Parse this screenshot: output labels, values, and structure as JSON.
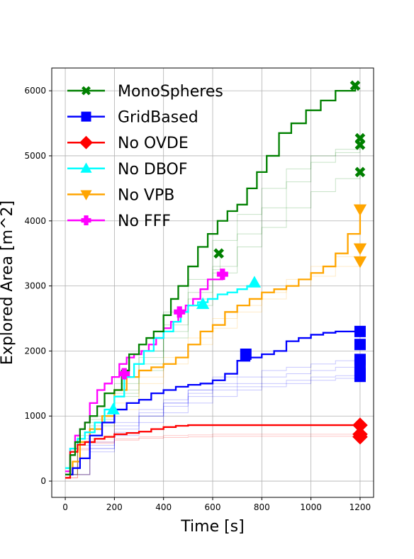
{
  "chart_data": {
    "type": "line",
    "title": "",
    "xlabel": "Time [s]",
    "ylabel": "Explored Area [m^2]",
    "xlim": [
      -55,
      1255
    ],
    "ylim": [
      -250,
      6350
    ],
    "xticks": [
      0,
      200,
      400,
      600,
      800,
      1000,
      1200
    ],
    "yticks": [
      0,
      1000,
      2000,
      3000,
      4000,
      5000,
      6000
    ],
    "xtick_labels": [
      "0",
      "200",
      "400",
      "600",
      "800",
      "1000",
      "1200"
    ],
    "ytick_labels": [
      "0",
      "1000",
      "2000",
      "3000",
      "4000",
      "5000",
      "6000"
    ],
    "grid": true,
    "legend_position": "top-left",
    "series": [
      {
        "name": "MonoSpheres",
        "color": "#008000",
        "marker": "x-filled",
        "main": {
          "x": [
            0,
            20,
            40,
            60,
            80,
            100,
            130,
            160,
            200,
            230,
            260,
            300,
            330,
            360,
            400,
            430,
            460,
            500,
            540,
            580,
            620,
            660,
            700,
            740,
            780,
            820,
            870,
            920,
            980,
            1040,
            1100,
            1180
          ],
          "y": [
            100,
            400,
            600,
            800,
            900,
            1000,
            1150,
            1350,
            1400,
            1700,
            1950,
            2100,
            2200,
            2300,
            2550,
            2800,
            3000,
            3300,
            3600,
            3800,
            4000,
            4150,
            4250,
            4500,
            4750,
            5000,
            5350,
            5500,
            5700,
            5850,
            6000,
            6080
          ]
        },
        "faint": [
          {
            "x": [
              0,
              50,
              100,
              200,
              300,
              400,
              500,
              600,
              700,
              800,
              900,
              1000,
              1100,
              1200
            ],
            "y": [
              100,
              700,
              1000,
              1500,
              2000,
              2600,
              3100,
              3700,
              4100,
              4500,
              4800,
              5000,
              5100,
              5250
            ]
          },
          {
            "x": [
              0,
              50,
              100,
              200,
              300,
              400,
              500,
              600,
              700,
              800,
              900,
              1000,
              1100,
              1200
            ],
            "y": [
              100,
              650,
              950,
              1400,
              1900,
              2400,
              2900,
              3300,
              3800,
              4200,
              4600,
              4900,
              5050,
              5150
            ]
          },
          {
            "x": [
              0,
              50,
              100,
              200,
              300,
              400,
              500,
              600,
              700,
              800,
              900,
              1000,
              1100,
              1200
            ],
            "y": [
              100,
              600,
              900,
              1350,
              1800,
              2300,
              2800,
              3200,
              3600,
              3900,
              4200,
              4450,
              4650,
              4750
            ]
          },
          {
            "x": [
              0,
              50,
              100,
              200,
              300,
              400,
              500,
              600,
              630
            ],
            "y": [
              100,
              550,
              850,
              1300,
              1700,
              2200,
              2700,
              3250,
              3500
            ]
          }
        ],
        "endpoints": [
          {
            "x": 1180,
            "y": 6080
          },
          {
            "x": 1200,
            "y": 5270
          },
          {
            "x": 1200,
            "y": 5170
          },
          {
            "x": 1200,
            "y": 4750
          },
          {
            "x": 625,
            "y": 3500
          }
        ]
      },
      {
        "name": "GridBased",
        "color": "#0000ff",
        "marker": "square",
        "main": {
          "x": [
            0,
            30,
            60,
            100,
            150,
            200,
            250,
            300,
            350,
            400,
            450,
            500,
            550,
            600,
            650,
            700,
            750,
            800,
            850,
            900,
            950,
            1000,
            1050,
            1100,
            1150,
            1200
          ],
          "y": [
            100,
            200,
            350,
            700,
            900,
            1100,
            1200,
            1250,
            1350,
            1400,
            1450,
            1480,
            1500,
            1550,
            1650,
            1850,
            1900,
            1950,
            2000,
            2150,
            2200,
            2250,
            2280,
            2300,
            2300,
            2300
          ]
        },
        "faint": [
          {
            "x": [
              0,
              100,
              200,
              300,
              400,
              500,
              600,
              700,
              800,
              900,
              1000,
              1100,
              1200
            ],
            "y": [
              100,
              600,
              900,
              1100,
              1250,
              1400,
              1500,
              1600,
              1700,
              1750,
              1800,
              1850,
              1900
            ]
          },
          {
            "x": [
              0,
              100,
              200,
              300,
              400,
              500,
              600,
              700,
              800,
              900,
              1000,
              1100,
              1200
            ],
            "y": [
              100,
              550,
              850,
              1050,
              1200,
              1350,
              1450,
              1500,
              1600,
              1650,
              1700,
              1750,
              1800
            ]
          },
          {
            "x": [
              0,
              100,
              200,
              300,
              400,
              500,
              600,
              700,
              800,
              900,
              1000,
              1100,
              1200
            ],
            "y": [
              100,
              500,
              800,
              1000,
              1150,
              1300,
              1400,
              1450,
              1500,
              1550,
              1600,
              1620,
              1650
            ]
          },
          {
            "x": [
              0,
              100,
              200,
              300,
              400,
              500,
              600,
              700,
              800,
              900,
              1000,
              1100,
              1200
            ],
            "y": [
              100,
              450,
              700,
              900,
              1050,
              1200,
              1300,
              1400,
              1450,
              1500,
              1550,
              1580,
              1600
            ]
          },
          {
            "x": [
              0,
              100,
              200,
              300,
              400,
              500,
              600,
              700,
              735
            ],
            "y": [
              100,
              500,
              750,
              1000,
              1200,
              1400,
              1600,
              1850,
              1950
            ]
          }
        ],
        "endpoints": [
          {
            "x": 1200,
            "y": 2300
          },
          {
            "x": 1200,
            "y": 2100
          },
          {
            "x": 1200,
            "y": 1870
          },
          {
            "x": 1200,
            "y": 1780
          },
          {
            "x": 1200,
            "y": 1650
          },
          {
            "x": 1200,
            "y": 1610
          },
          {
            "x": 735,
            "y": 1950
          }
        ]
      },
      {
        "name": "No OVDE",
        "color": "#ff0000",
        "marker": "diamond",
        "main": {
          "x": [
            0,
            20,
            50,
            80,
            120,
            160,
            200,
            250,
            300,
            350,
            400,
            450,
            500,
            600,
            700,
            800,
            900,
            1000,
            1100,
            1200
          ],
          "y": [
            50,
            450,
            560,
            600,
            650,
            680,
            720,
            740,
            760,
            800,
            830,
            850,
            860,
            860,
            860,
            860,
            860,
            860,
            860,
            860
          ]
        },
        "faint": [
          {
            "x": [
              0,
              50,
              100,
              200,
              300,
              400,
              500,
              600,
              700,
              800,
              900,
              1000,
              1100,
              1200
            ],
            "y": [
              50,
              500,
              600,
              650,
              680,
              700,
              710,
              720,
              720,
              720,
              720,
              720,
              720,
              720
            ]
          },
          {
            "x": [
              0,
              50,
              100,
              200,
              300,
              400,
              500,
              600,
              700,
              800,
              900,
              1000,
              1100,
              1200
            ],
            "y": [
              50,
              480,
              580,
              630,
              660,
              670,
              680,
              690,
              690,
              690,
              690,
              690,
              690,
              690
            ]
          }
        ],
        "endpoints": [
          {
            "x": 1200,
            "y": 860
          },
          {
            "x": 1200,
            "y": 720
          },
          {
            "x": 1200,
            "y": 680
          }
        ]
      },
      {
        "name": "No DBOF",
        "color": "#00ffff",
        "marker": "triangle-up",
        "main": {
          "x": [
            0,
            20,
            50,
            80,
            120,
            160,
            200,
            240,
            280,
            320,
            360,
            400,
            440,
            470,
            500,
            540,
            580,
            620,
            660,
            700,
            740,
            770
          ],
          "y": [
            200,
            500,
            650,
            750,
            900,
            1100,
            1300,
            1600,
            1800,
            2000,
            2200,
            2300,
            2450,
            2600,
            2700,
            2750,
            2800,
            2870,
            2900,
            2950,
            3000,
            3050
          ]
        },
        "faint": [],
        "endpoints": [
          {
            "x": 770,
            "y": 3050
          },
          {
            "x": 560,
            "y": 2720
          },
          {
            "x": 195,
            "y": 1100
          }
        ]
      },
      {
        "name": "No VPB",
        "color": "#ffa500",
        "marker": "triangle-down",
        "main": {
          "x": [
            0,
            30,
            60,
            100,
            150,
            200,
            250,
            300,
            350,
            400,
            450,
            500,
            550,
            600,
            650,
            700,
            750,
            800,
            850,
            900,
            950,
            1000,
            1050,
            1100,
            1150,
            1200
          ],
          "y": [
            100,
            300,
            600,
            800,
            1000,
            1400,
            1600,
            1700,
            1750,
            1800,
            1900,
            2100,
            2300,
            2400,
            2600,
            2700,
            2800,
            2900,
            2950,
            3000,
            3100,
            3200,
            3300,
            3500,
            3800,
            4150
          ]
        },
        "faint": [
          {
            "x": [
              0,
              100,
              200,
              300,
              400,
              500,
              600,
              700,
              800,
              900,
              1000,
              1100,
              1200
            ],
            "y": [
              100,
              700,
              1200,
              1600,
              1900,
              2200,
              2500,
              2700,
              2900,
              3100,
              3300,
              3450,
              3580
            ]
          },
          {
            "x": [
              0,
              100,
              200,
              300,
              400,
              500,
              600,
              700,
              800,
              900,
              1000,
              1100,
              1200
            ],
            "y": [
              100,
              650,
              1100,
              1500,
              1800,
              2100,
              2350,
              2600,
              2800,
              3000,
              3150,
              3300,
              3380
            ]
          }
        ],
        "endpoints": [
          {
            "x": 1200,
            "y": 4180
          },
          {
            "x": 1200,
            "y": 3580
          },
          {
            "x": 1200,
            "y": 3380
          }
        ]
      },
      {
        "name": "No FFF",
        "color": "#ff00ff",
        "marker": "plus-filled",
        "main": {
          "x": [
            0,
            20,
            40,
            60,
            80,
            100,
            130,
            160,
            190,
            220,
            250,
            280,
            310,
            340,
            370,
            400,
            430,
            460,
            490,
            520,
            550,
            580,
            610,
            640
          ],
          "y": [
            150,
            500,
            700,
            800,
            900,
            1200,
            1400,
            1500,
            1600,
            1800,
            1900,
            1950,
            2000,
            2100,
            2200,
            2350,
            2450,
            2600,
            2700,
            2800,
            2950,
            3100,
            3100,
            3180
          ]
        },
        "faint": [],
        "endpoints": [
          {
            "x": 640,
            "y": 3180
          },
          {
            "x": 465,
            "y": 2600
          },
          {
            "x": 240,
            "y": 1650
          }
        ]
      }
    ]
  }
}
